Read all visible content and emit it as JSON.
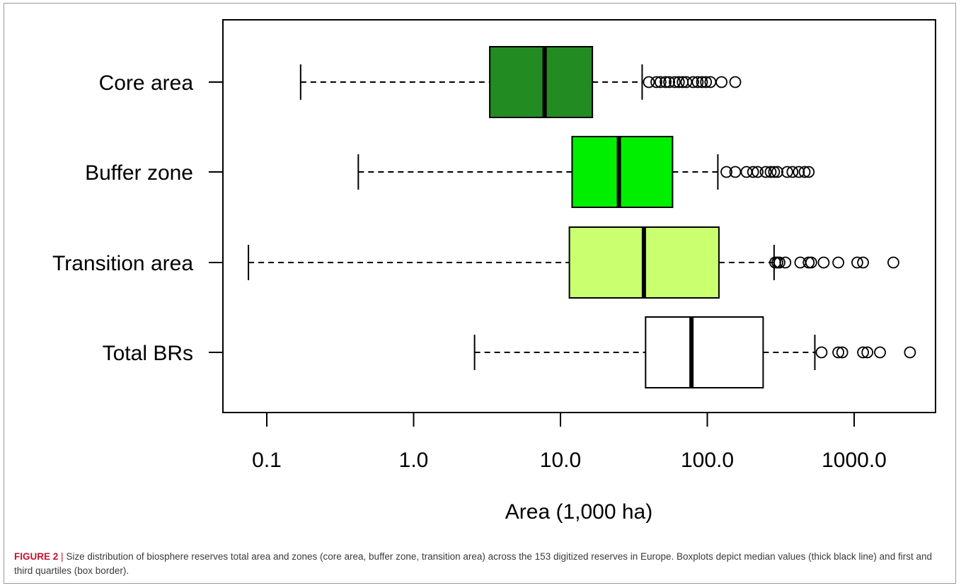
{
  "chart_data": {
    "type": "boxplot",
    "orientation": "horizontal",
    "xlabel": "Area (1,000 ha)",
    "x_scale": "log",
    "xlim": [
      0.05,
      3000
    ],
    "x_ticks": [
      0.1,
      1,
      10,
      100,
      1000
    ],
    "x_tick_labels": [
      "0.1",
      "1.0",
      "10.0",
      "100.0",
      "1000.0"
    ],
    "grid": false,
    "legend": "none",
    "categories": [
      "Core area",
      "Buffer zone",
      "Transition area",
      "Total BRs"
    ],
    "boxes": [
      {
        "label": "Core area",
        "color": "#228b22",
        "whisker_low": 0.17,
        "q1": 3.3,
        "median": 7.8,
        "q3": 16.5,
        "whisker_high": 36,
        "outliers": [
          40,
          45,
          48,
          52,
          55,
          60,
          64,
          68,
          72,
          80,
          86,
          92,
          98,
          105,
          125,
          155
        ]
      },
      {
        "label": "Buffer zone",
        "color": "#00ee00",
        "whisker_low": 0.42,
        "q1": 12,
        "median": 25,
        "q3": 58,
        "whisker_high": 118,
        "outliers": [
          135,
          155,
          185,
          205,
          220,
          250,
          270,
          285,
          300,
          350,
          380,
          420,
          460,
          490
        ]
      },
      {
        "label": "Transition area",
        "color": "#caff70",
        "whisker_low": 0.075,
        "q1": 11.5,
        "median": 37,
        "q3": 120,
        "whisker_high": 285,
        "outliers": [
          290,
          300,
          310,
          340,
          430,
          490,
          510,
          620,
          780,
          1050,
          1150,
          1850
        ]
      },
      {
        "label": "Total BRs",
        "color": "#ffffff",
        "whisker_low": 2.6,
        "q1": 38,
        "median": 78,
        "q3": 240,
        "whisker_high": 540,
        "outliers": [
          600,
          780,
          830,
          1150,
          1230,
          1500,
          2400
        ]
      }
    ]
  },
  "caption": {
    "label": "FIGURE 2",
    "separator": "|",
    "text": "Size distribution of biosphere reserves total area and zones (core area, buffer zone, transition area) across the 153 digitized reserves in Europe. Boxplots depict median values (thick black line) and first and third quartiles (box border)."
  }
}
